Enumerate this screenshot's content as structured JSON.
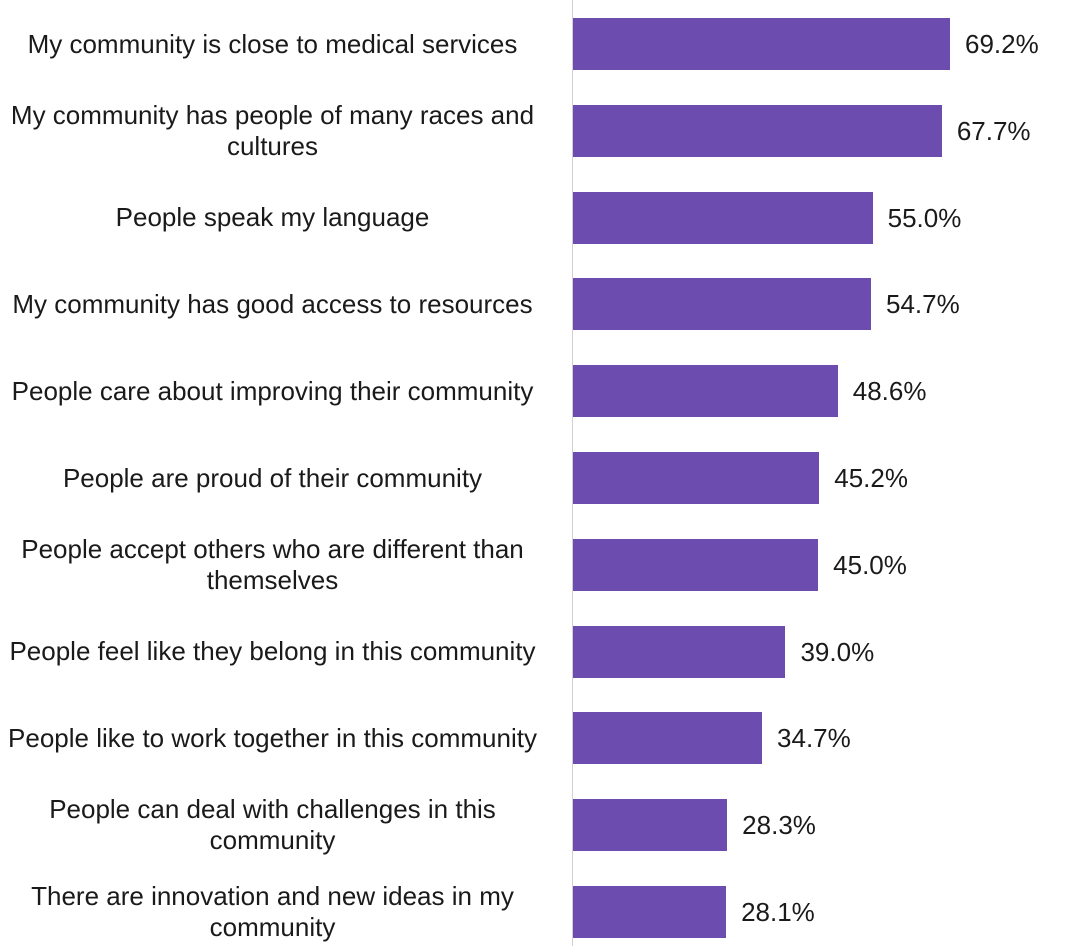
{
  "chart_data": {
    "type": "bar",
    "orientation": "horizontal",
    "categories": [
      "My community is close to medical services",
      "My community has people of many races and cultures",
      "People speak my language",
      "My community has good access to resources",
      "People care about improving their community",
      "People are proud of their community",
      "People accept others who are different than themselves",
      "People feel like they belong in this community",
      "People like to work together in this community",
      "People can deal with challenges in this community",
      "There are innovation and new ideas in my community"
    ],
    "values": [
      69.2,
      67.7,
      55.0,
      54.7,
      48.6,
      45.2,
      45.0,
      39.0,
      34.7,
      28.3,
      28.1
    ],
    "value_labels": [
      "69.2%",
      "67.7%",
      "55.0%",
      "54.7%",
      "48.6%",
      "45.2%",
      "45.0%",
      "39.0%",
      "34.7%",
      "28.3%",
      "28.1%"
    ],
    "xlim": [
      0,
      100
    ],
    "grid": false,
    "bar_color": "#6c4cae"
  }
}
